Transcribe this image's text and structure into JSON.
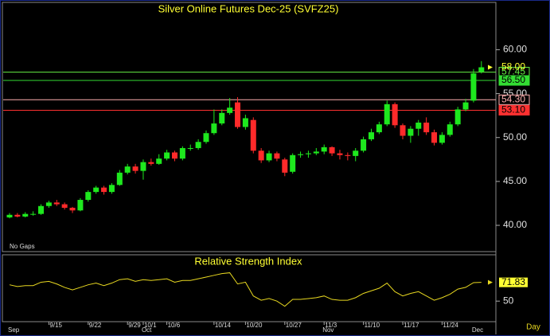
{
  "chart_data": [
    {
      "type": "candlestick",
      "title": "Silver Online Futures Dec-25 (SVFZ25)",
      "note": "No Gaps",
      "categories": [
        null,
        null,
        null,
        null,
        null,
        "9/15",
        null,
        null,
        null,
        null,
        "9/22",
        null,
        null,
        null,
        null,
        "9/29",
        null,
        "10/1",
        null,
        null,
        "10/6",
        null,
        null,
        null,
        null,
        null,
        "10/14",
        null,
        null,
        null,
        "10/20",
        null,
        null,
        null,
        null,
        "10/27",
        null,
        null,
        null,
        null,
        "11/3",
        null,
        null,
        null,
        null,
        "11/10",
        null,
        null,
        null,
        null,
        "11/17",
        null,
        null,
        null,
        null,
        "11/24",
        null,
        null,
        null,
        null,
        null
      ],
      "month_markers": [
        "Sep",
        null,
        null,
        null,
        null,
        null,
        null,
        null,
        null,
        null,
        null,
        null,
        null,
        null,
        null,
        null,
        null,
        "Oct",
        null,
        null,
        null,
        null,
        null,
        null,
        null,
        null,
        null,
        null,
        null,
        null,
        null,
        null,
        null,
        null,
        null,
        null,
        null,
        null,
        null,
        null,
        "Nov",
        null,
        null,
        null,
        null,
        null,
        null,
        null,
        null,
        null,
        null,
        null,
        null,
        null,
        null,
        null,
        null,
        null,
        null,
        "Dec",
        null
      ],
      "xlabel": "Day",
      "open": [
        40.9,
        41.2,
        41.0,
        41.3,
        41.3,
        42.2,
        42.6,
        42.4,
        42.0,
        41.7,
        42.9,
        43.8,
        44.3,
        43.8,
        44.6,
        46.0,
        46.7,
        46.2,
        47.2,
        47.0,
        47.6,
        48.3,
        47.6,
        48.8,
        48.8,
        49.5,
        50.5,
        51.6,
        52.8,
        54.0,
        51.2,
        52.0,
        48.5,
        47.4,
        48.2,
        47.5,
        46.1,
        48.0,
        48.1,
        48.2,
        48.4,
        48.9,
        48.2,
        48.0,
        47.9,
        48.5,
        49.8,
        50.6,
        51.5,
        53.8,
        51.4,
        50.2,
        51.0,
        51.7,
        50.6,
        49.4,
        50.3,
        51.5,
        53.2,
        54.2,
        57.5
      ],
      "high": [
        41.4,
        41.4,
        41.5,
        41.6,
        42.4,
        42.8,
        42.9,
        42.6,
        42.1,
        43.1,
        44.0,
        44.5,
        44.5,
        44.8,
        46.3,
        47.0,
        47.0,
        47.5,
        47.6,
        48.1,
        48.6,
        48.5,
        49.0,
        49.2,
        49.8,
        50.8,
        53.2,
        53.2,
        54.5,
        54.6,
        52.6,
        52.3,
        48.8,
        48.5,
        48.4,
        47.7,
        48.2,
        48.4,
        48.5,
        48.8,
        49.2,
        49.0,
        48.6,
        48.3,
        48.8,
        50.1,
        51.0,
        51.8,
        54.2,
        54.0,
        51.6,
        51.3,
        52.0,
        52.3,
        50.9,
        50.6,
        51.8,
        53.5,
        54.4,
        57.8,
        58.7
      ],
      "low": [
        40.8,
        40.9,
        40.9,
        41.1,
        41.2,
        42.0,
        42.2,
        41.8,
        41.4,
        41.6,
        42.7,
        43.6,
        43.5,
        43.6,
        44.5,
        45.8,
        45.9,
        45.2,
        46.8,
        46.9,
        47.4,
        47.3,
        47.4,
        48.5,
        48.6,
        49.3,
        50.3,
        51.4,
        52.6,
        51.0,
        50.9,
        48.2,
        47.1,
        47.2,
        47.3,
        45.6,
        45.9,
        47.7,
        47.7,
        48.0,
        48.1,
        47.9,
        47.5,
        47.4,
        47.3,
        48.3,
        49.6,
        50.4,
        51.3,
        51.1,
        49.8,
        49.4,
        50.2,
        50.3,
        49.1,
        49.2,
        50.1,
        51.3,
        53.0,
        54.0,
        57.3
      ],
      "close": [
        41.2,
        41.0,
        41.3,
        41.3,
        42.2,
        42.6,
        42.4,
        42.0,
        41.7,
        42.9,
        43.8,
        44.3,
        43.8,
        44.6,
        46.0,
        46.7,
        46.2,
        47.2,
        47.0,
        47.6,
        48.3,
        47.6,
        48.8,
        48.8,
        49.5,
        50.5,
        51.6,
        52.8,
        53.4,
        51.2,
        52.2,
        48.5,
        47.4,
        48.2,
        47.6,
        46.0,
        48.0,
        48.1,
        48.2,
        48.4,
        48.9,
        48.2,
        48.0,
        47.9,
        48.5,
        49.8,
        50.6,
        51.5,
        53.8,
        51.4,
        50.2,
        51.0,
        51.7,
        50.6,
        49.4,
        50.3,
        51.5,
        53.2,
        54.0,
        57.3,
        58.0
      ],
      "up_color": "#1ee81e",
      "down_color": "#ff2a2a",
      "ylim": [
        37.1,
        65.3
      ],
      "yticks": [
        {
          "value": 40,
          "label": "40.00"
        },
        {
          "value": 45,
          "label": "45.00"
        },
        {
          "value": 50,
          "label": "50.00"
        },
        {
          "value": 55,
          "label": "55.00"
        },
        {
          "value": 60,
          "label": "60.00"
        }
      ],
      "last": {
        "value": 58,
        "label": "58.00",
        "color": "#ffff33"
      },
      "levels": [
        {
          "value": 57.45,
          "label": "57.45",
          "color": "#66ee44"
        },
        {
          "value": 56.5,
          "label": "56.50",
          "color": "#33dd33"
        },
        {
          "value": 54.3,
          "label": "54.30",
          "color": "#ffb0b0"
        },
        {
          "value": 53.1,
          "label": "53.10",
          "color": "#ff3030"
        }
      ]
    },
    {
      "type": "line",
      "title": "Relative Strength Index",
      "values": [
        69,
        67,
        68,
        68,
        72,
        73,
        70,
        66,
        63,
        66,
        69,
        71,
        68,
        71,
        75,
        76,
        73,
        75,
        74,
        75,
        76,
        72,
        74,
        74,
        76,
        78,
        80,
        82,
        83,
        70,
        72,
        56,
        51,
        53,
        50,
        44,
        52,
        52,
        53,
        54,
        56,
        52,
        51,
        51,
        54,
        59,
        62,
        65,
        71,
        61,
        56,
        59,
        61,
        56,
        51,
        54,
        58,
        64,
        66,
        71.5,
        71.83
      ],
      "value_labels": [
        null,
        null,
        null,
        null,
        null,
        null,
        null,
        null,
        null,
        null,
        null,
        null,
        null,
        null,
        null,
        null,
        null,
        null,
        null,
        null,
        null,
        null,
        null,
        null,
        null,
        null,
        null,
        null,
        null,
        null,
        null,
        null,
        null,
        null,
        null,
        null,
        null,
        null,
        null,
        null,
        null,
        null,
        null,
        null,
        null,
        null,
        null,
        null,
        null,
        null,
        null,
        null,
        null,
        null,
        null,
        null,
        null,
        null,
        null,
        null,
        "71.83"
      ],
      "color": "#e8d820",
      "ylim": [
        27,
        103
      ],
      "yticks": [
        50
      ]
    }
  ]
}
